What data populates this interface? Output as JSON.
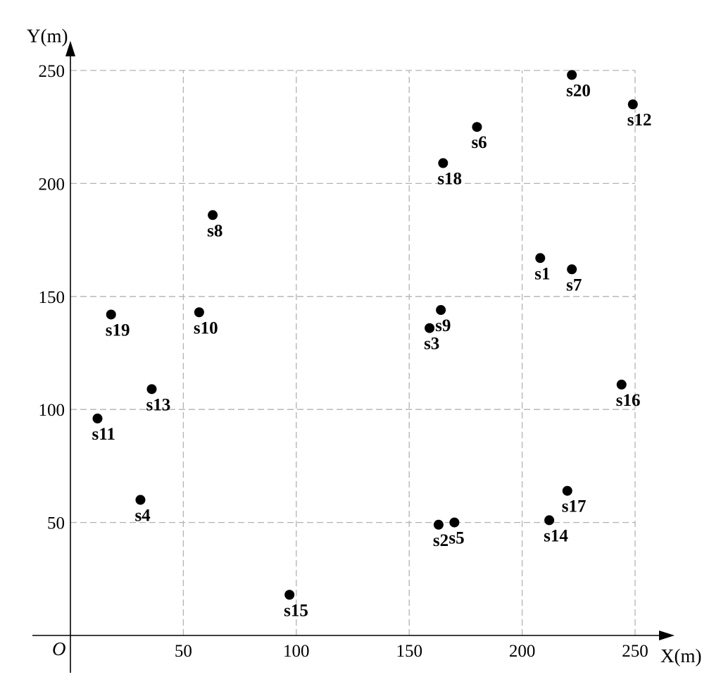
{
  "chart_data": {
    "type": "scatter",
    "xlabel": "X(m)",
    "ylabel": "Y(m)",
    "origin_label": "O",
    "xlim": [
      0,
      250
    ],
    "ylim": [
      0,
      250
    ],
    "x_ticks": [
      50,
      100,
      150,
      200,
      250
    ],
    "y_ticks": [
      50,
      100,
      150,
      200,
      250
    ],
    "grid": true,
    "legend": "none",
    "points": [
      {
        "label": "s1",
        "x": 208,
        "y": 167
      },
      {
        "label": "s2",
        "x": 163,
        "y": 49
      },
      {
        "label": "s3",
        "x": 159,
        "y": 136
      },
      {
        "label": "s4",
        "x": 31,
        "y": 60
      },
      {
        "label": "s5",
        "x": 170,
        "y": 50
      },
      {
        "label": "s6",
        "x": 180,
        "y": 225
      },
      {
        "label": "s7",
        "x": 222,
        "y": 162
      },
      {
        "label": "s8",
        "x": 63,
        "y": 186
      },
      {
        "label": "s9",
        "x": 164,
        "y": 144
      },
      {
        "label": "s10",
        "x": 57,
        "y": 143
      },
      {
        "label": "s11",
        "x": 12,
        "y": 96
      },
      {
        "label": "s12",
        "x": 249,
        "y": 235
      },
      {
        "label": "s13",
        "x": 36,
        "y": 109
      },
      {
        "label": "s14",
        "x": 212,
        "y": 51
      },
      {
        "label": "s15",
        "x": 97,
        "y": 18
      },
      {
        "label": "s16",
        "x": 244,
        "y": 111
      },
      {
        "label": "s17",
        "x": 220,
        "y": 64
      },
      {
        "label": "s18",
        "x": 165,
        "y": 209
      },
      {
        "label": "s19",
        "x": 18,
        "y": 142
      },
      {
        "label": "s20",
        "x": 222,
        "y": 248
      }
    ]
  }
}
